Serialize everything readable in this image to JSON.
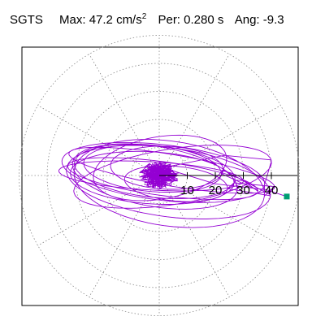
{
  "header": {
    "station": "SGTS",
    "max_label": "Max:",
    "max_value": "47.2 cm/s",
    "max_exp": "2",
    "per_label": "Per:",
    "per_value": "0.280 s",
    "ang_label": "Ang:",
    "ang_value": "-9.3"
  },
  "chart_data": {
    "type": "polar-orbit",
    "title": "SGTS  Max: 47.2 cm/s2  Per: 0.280 s  Ang: -9.3",
    "radial_ticks": [
      10,
      20,
      30,
      40
    ],
    "radial_tick_labels": [
      "10",
      "20",
      "30",
      "40"
    ],
    "r_max": 50,
    "angular_gridlines_deg": [
      0,
      30,
      60,
      90,
      120,
      150,
      180,
      210,
      240,
      270,
      300,
      330
    ],
    "grid": true,
    "max_amplitude": 47.2,
    "max_units": "cm/s2",
    "period_s": 0.28,
    "angle_deg": -9.3,
    "trace_color": "#9400D3",
    "end_marker_color": "#009E73",
    "end_point": {
      "x": 45.5,
      "y": -7.5
    }
  }
}
